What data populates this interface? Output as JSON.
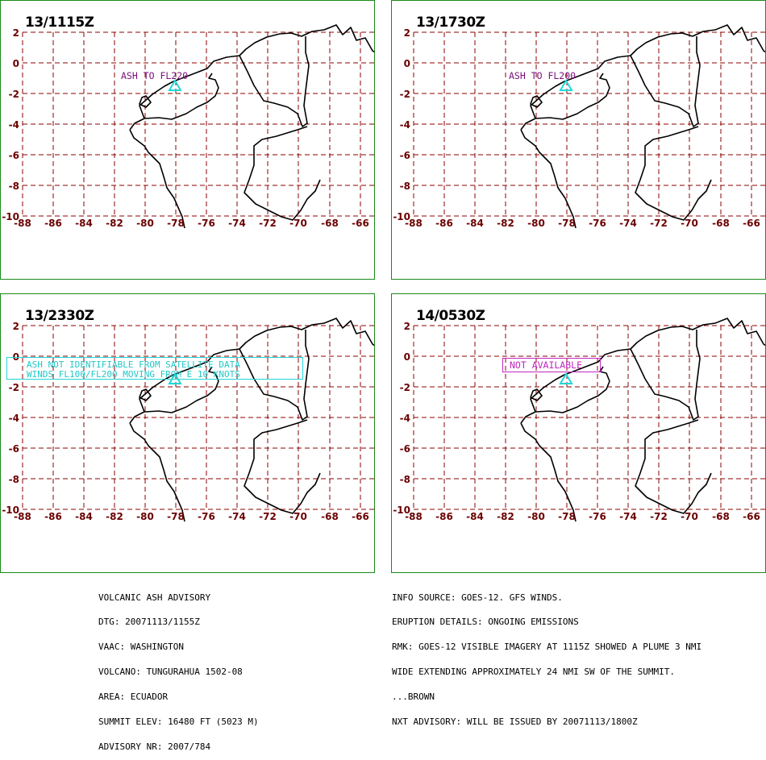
{
  "map": {
    "lat_labels": [
      "2",
      "0",
      "-2",
      "-4",
      "-6",
      "-8",
      "-10"
    ],
    "lon_labels": [
      "-88",
      "-86",
      "-84",
      "-82",
      "-80",
      "-78",
      "-76",
      "-74",
      "-72",
      "-70",
      "-68",
      "-66"
    ],
    "colors": {
      "grid": "#8b0000",
      "labels": "#6b0000",
      "coast": "#000000",
      "border": "#1a8a1a",
      "volcano": "#22d6d6"
    },
    "volcano_marker_icon": "triangle-icon"
  },
  "panels": [
    {
      "time": "13/1115Z",
      "annotation": [
        "ASH TO FL220"
      ]
    },
    {
      "time": "13/1730Z",
      "annotation": [
        "ASH TO FL200"
      ]
    },
    {
      "time": "13/2330Z",
      "annotation": [
        "ASH NOT IDENTIFIABLE FROM SATELLITE DATA",
        "WINDS FL100/FL200 MOVING FROM E 10 KNOTS"
      ]
    },
    {
      "time": "14/0530Z",
      "annotation": [
        "NOT AVAILABLE"
      ]
    }
  ],
  "advisory_left": [
    "VOLCANIC ASH ADVISORY",
    "DTG: 20071113/1155Z",
    "VAAC: WASHINGTON",
    "VOLCANO: TUNGURAHUA 1502-08",
    "AREA: ECUADOR",
    "SUMMIT ELEV: 16480 FT (5023 M)",
    "ADVISORY NR: 2007/784"
  ],
  "advisory_right": [
    "INFO SOURCE: GOES-12. GFS WINDS.",
    "ERUPTION DETAILS: ONGOING EMISSIONS",
    "RMK: GOES-12 VISIBLE IMAGERY AT 1115Z SHOWED A PLUME 3 NMI",
    "WIDE EXTENDING APPROXIMATELY 24 NMI SW OF THE SUMMIT.",
    "...BROWN",
    "NXT ADVISORY: WILL BE ISSUED BY 20071113/1800Z"
  ]
}
